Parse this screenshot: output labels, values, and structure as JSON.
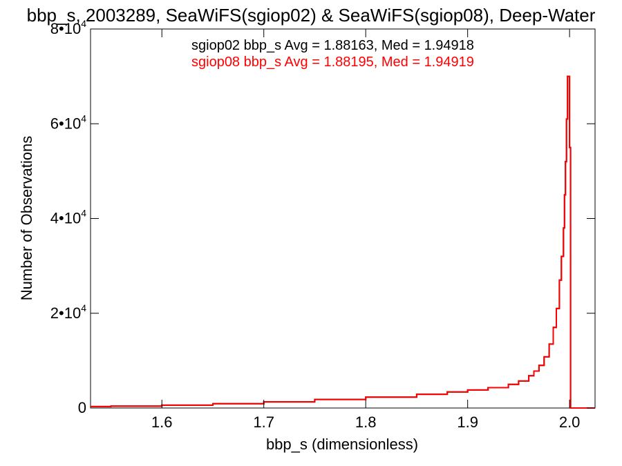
{
  "chart_data": {
    "type": "line",
    "title": "bbp_s, 2003289, SeaWiFS(sgiop02) & SeaWiFS(sgiop08), Deep-Water",
    "xlabel": "bbp_s (dimensionless)",
    "ylabel": "Number of Observations",
    "xlim": [
      1.53,
      2.025
    ],
    "ylim": [
      0,
      80000
    ],
    "xticks": [
      1.6,
      1.7,
      1.8,
      1.9,
      2.0
    ],
    "xtick_labels": [
      "1.6",
      "1.7",
      "1.8",
      "1.9",
      "2.0"
    ],
    "yticks": [
      {
        "mant": "0",
        "exp": ""
      },
      {
        "mant": "2•10",
        "exp": "4"
      },
      {
        "mant": "4•10",
        "exp": "4"
      },
      {
        "mant": "6•10",
        "exp": "4"
      },
      {
        "mant": "8•10",
        "exp": "4"
      }
    ],
    "ytick_values": [
      0,
      20000,
      40000,
      60000,
      80000
    ],
    "annotations": [
      {
        "text": "sgiop02 bbp_s Avg = 1.88163, Med = 1.94918",
        "color": "#000000"
      },
      {
        "text": "sgiop08 bbp_s Avg = 1.88195, Med = 1.94919",
        "color": "#ff0000"
      }
    ],
    "series": [
      {
        "name": "sgiop02",
        "color": "#000000",
        "x": [
          1.53,
          1.55,
          1.6,
          1.65,
          1.7,
          1.75,
          1.8,
          1.85,
          1.88,
          1.9,
          1.92,
          1.94,
          1.95,
          1.96,
          1.965,
          1.97,
          1.975,
          1.98,
          1.984,
          1.987,
          1.99,
          1.992,
          1.994,
          1.995,
          1.996,
          1.997,
          1.998,
          1.999,
          2.0,
          2.001,
          2.002,
          2.025
        ],
        "y": [
          300,
          400,
          600,
          900,
          1300,
          1800,
          2300,
          2900,
          3400,
          3800,
          4300,
          5000,
          5700,
          6800,
          7800,
          9000,
          10800,
          13500,
          17000,
          21000,
          27000,
          32000,
          38000,
          45000,
          52000,
          61000,
          70000,
          70000,
          55000,
          0,
          0,
          0
        ]
      },
      {
        "name": "sgiop08",
        "color": "#ff0000",
        "x": [
          1.53,
          1.55,
          1.6,
          1.65,
          1.7,
          1.75,
          1.8,
          1.85,
          1.88,
          1.9,
          1.92,
          1.94,
          1.95,
          1.96,
          1.965,
          1.97,
          1.975,
          1.98,
          1.984,
          1.987,
          1.99,
          1.992,
          1.994,
          1.995,
          1.996,
          1.997,
          1.998,
          1.999,
          2.0,
          2.001,
          2.002,
          2.025
        ],
        "y": [
          300,
          400,
          600,
          900,
          1300,
          1800,
          2300,
          2900,
          3400,
          3800,
          4300,
          5000,
          5700,
          6800,
          7800,
          9000,
          10800,
          13500,
          17000,
          21000,
          27000,
          32000,
          38000,
          45000,
          52000,
          61000,
          70000,
          70000,
          55000,
          0,
          0,
          0
        ]
      }
    ]
  }
}
